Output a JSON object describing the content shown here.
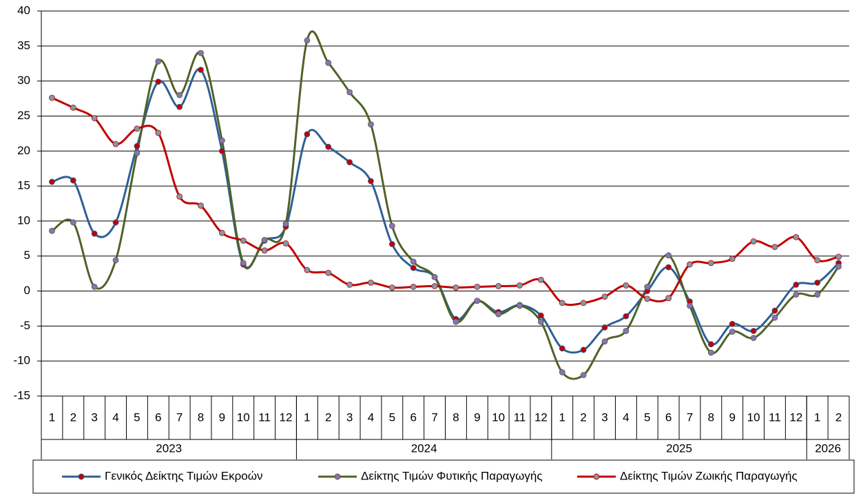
{
  "chart_data": {
    "type": "line",
    "categories": [
      "1",
      "2",
      "3",
      "4",
      "5",
      "6",
      "7",
      "8",
      "9",
      "10",
      "11",
      "12",
      "1",
      "2",
      "3",
      "4",
      "5",
      "6",
      "7",
      "8",
      "9",
      "10",
      "11",
      "12",
      "1",
      "2",
      "3",
      "4",
      "5",
      "6",
      "7",
      "8",
      "9",
      "10",
      "11",
      "12",
      "1",
      "2"
    ],
    "category_groups": [
      "2023",
      "2024",
      "2025",
      "2026"
    ],
    "ylim": [
      -15,
      40
    ],
    "yticks": [
      -15,
      -10,
      -5,
      0,
      5,
      10,
      15,
      20,
      25,
      30,
      35,
      40
    ],
    "grid": true,
    "smooth": true,
    "legend": "bottom",
    "series": [
      {
        "name": "Γενικός Δείκτης Τιμών Εκροών",
        "color": "#2e5f95",
        "marker_color": "#c00000",
        "values": [
          15.6,
          15.8,
          8.2,
          9.8,
          20.7,
          29.9,
          26.3,
          31.6,
          20.0,
          3.8,
          7.2,
          9.2,
          22.4,
          20.6,
          18.4,
          15.7,
          6.7,
          3.3,
          2.0,
          -4.0,
          -1.4,
          -3.0,
          -2.0,
          -3.5,
          -8.2,
          -8.4,
          -5.2,
          -3.6,
          0.0,
          3.4,
          -1.5,
          -7.6,
          -4.7,
          -5.7,
          -2.8,
          0.9,
          1.2,
          4.0
        ]
      },
      {
        "name": "Δείκτης Τιμών Φυτικής Παραγωγής",
        "color": "#4f6228",
        "marker_color": "#8e6fbf",
        "values": [
          8.6,
          9.8,
          0.6,
          4.4,
          19.7,
          32.8,
          28.0,
          34.0,
          21.5,
          4.0,
          7.3,
          9.6,
          35.8,
          32.6,
          28.4,
          23.8,
          9.3,
          4.2,
          2.0,
          -4.4,
          -1.4,
          -3.3,
          -2.1,
          -4.4,
          -11.6,
          -12.0,
          -7.2,
          -5.7,
          0.6,
          5.1,
          -2.1,
          -8.8,
          -5.8,
          -6.7,
          -3.8,
          -0.5,
          -0.5,
          3.5
        ]
      },
      {
        "name": "Δείκτης Τιμών Ζωικής Παραγωγής",
        "color": "#c00000",
        "marker_color": "#7f9aa8",
        "values": [
          27.6,
          26.2,
          24.7,
          21.0,
          23.2,
          22.6,
          13.5,
          12.2,
          8.3,
          7.2,
          5.8,
          6.8,
          3.0,
          2.6,
          0.9,
          1.2,
          0.5,
          0.6,
          0.7,
          0.5,
          0.6,
          0.7,
          0.8,
          1.6,
          -1.7,
          -1.7,
          -0.8,
          0.8,
          -1.1,
          -1.0,
          3.8,
          4.0,
          4.6,
          7.1,
          6.3,
          7.7,
          4.4,
          4.9
        ]
      }
    ]
  }
}
